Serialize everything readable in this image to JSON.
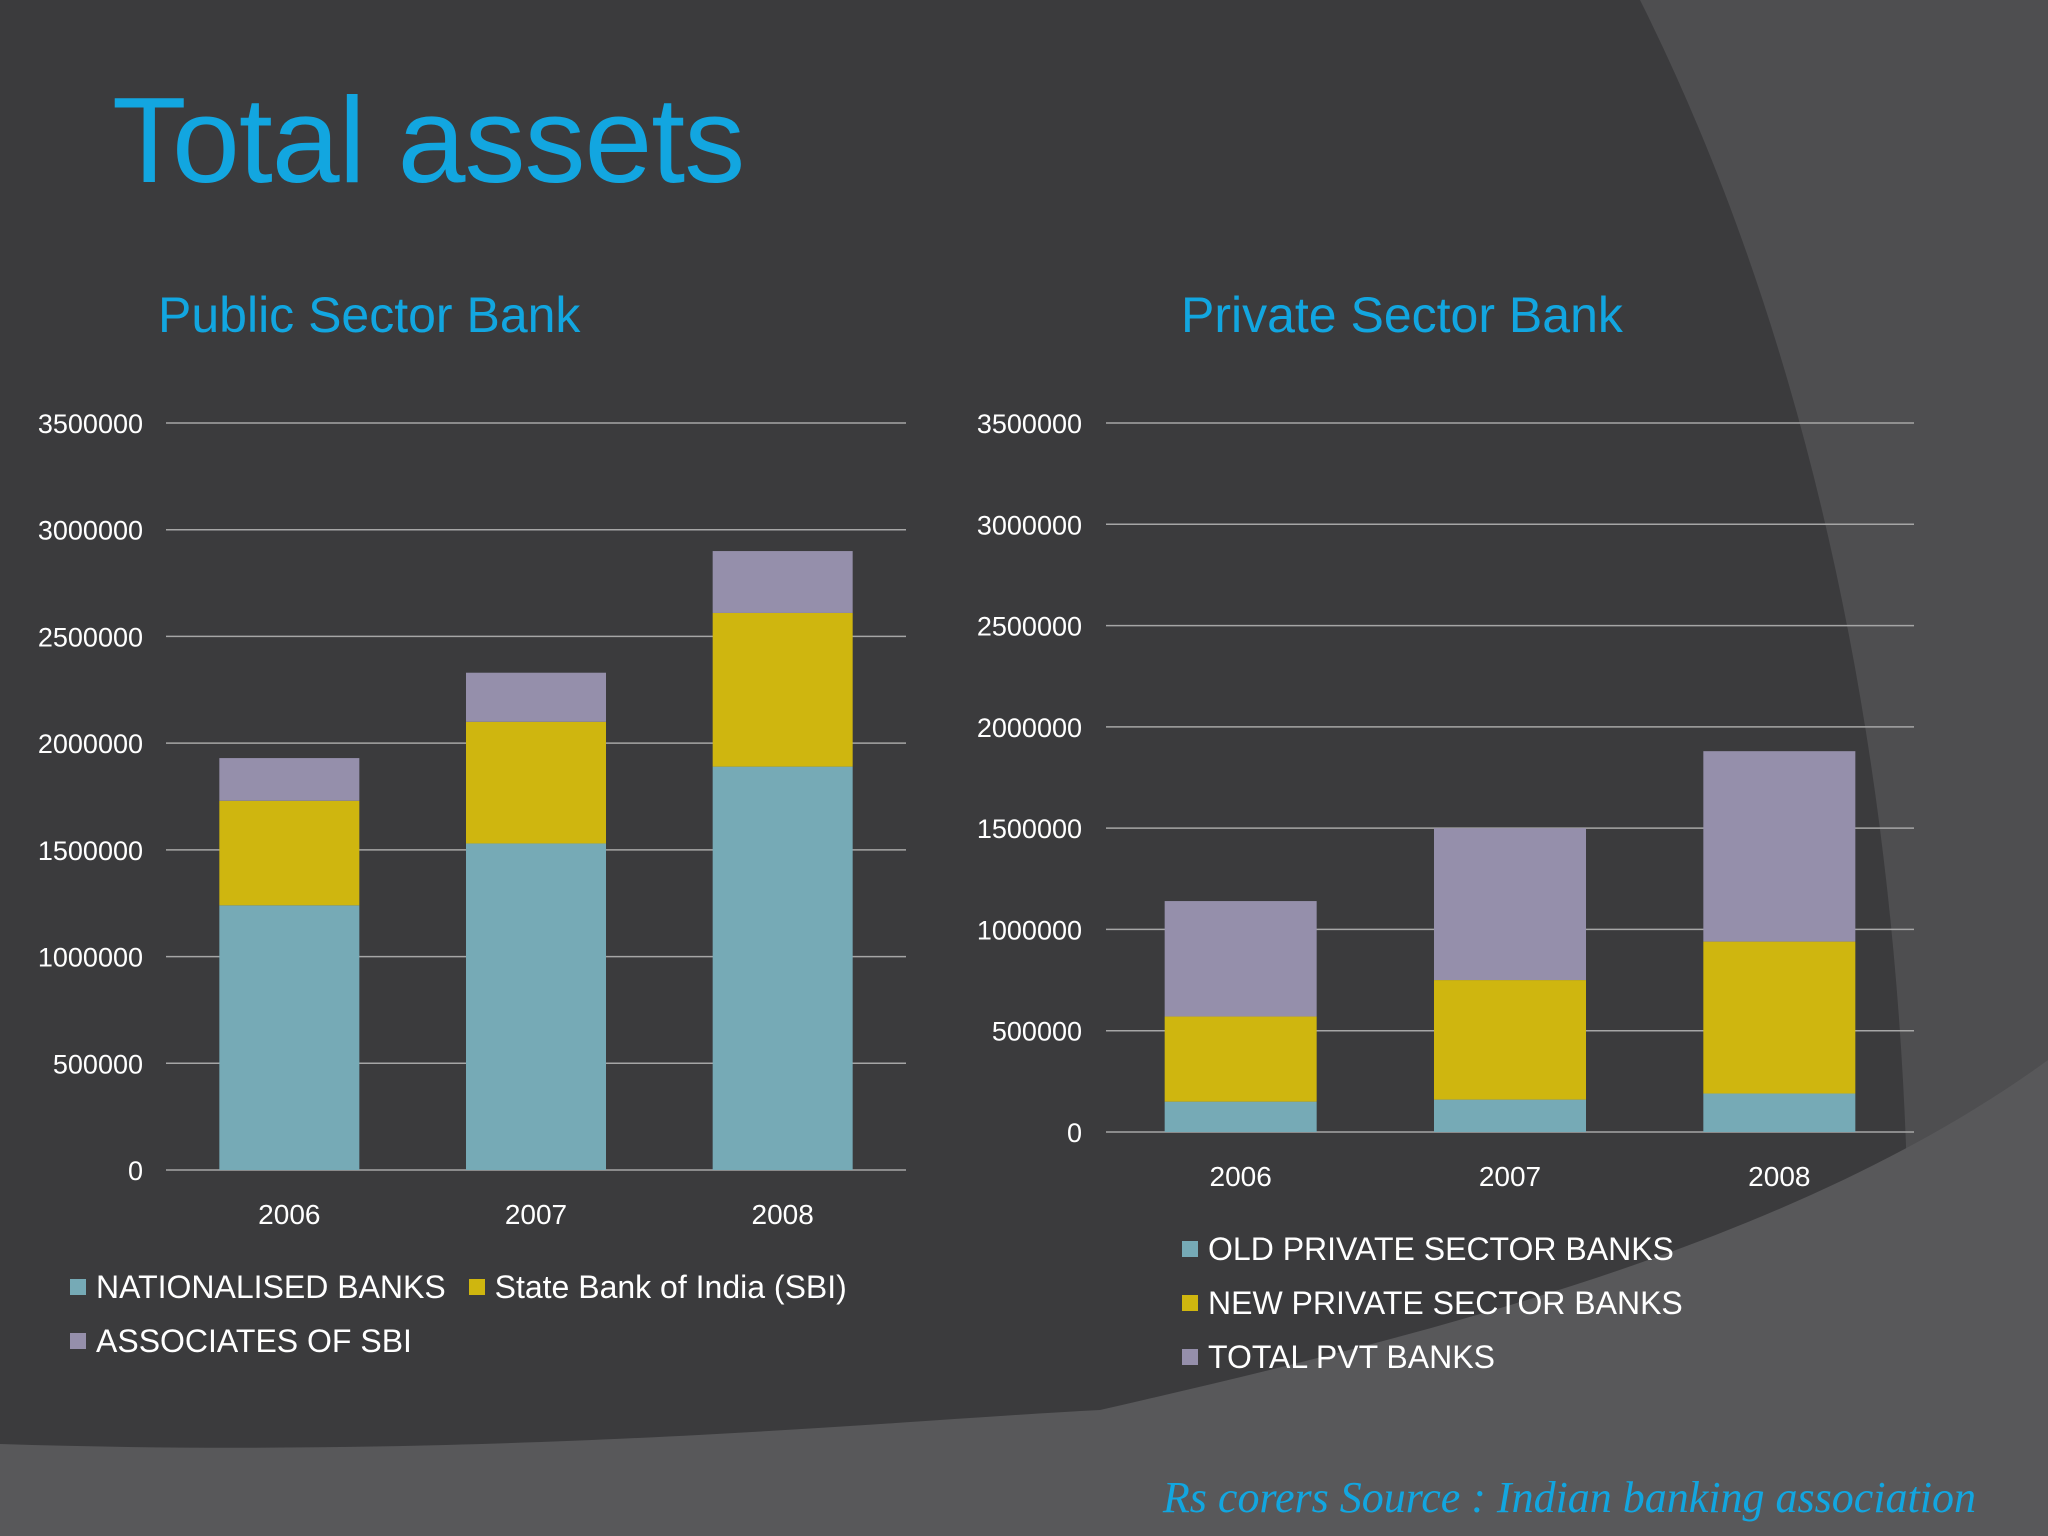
{
  "title": "Total assets",
  "source": "Rs corers Source : Indian banking association",
  "colors": {
    "background": "#3b3b3d",
    "title": "#12a6e0",
    "series_teal": "#76aab6",
    "series_yellow": "#cfb60f",
    "series_purple": "#958fab"
  },
  "chart_data": [
    {
      "type": "bar",
      "stacked": true,
      "title": "Public Sector Bank",
      "categories": [
        "2006",
        "2007",
        "2008"
      ],
      "yticks": [
        "0",
        "500000",
        "1000000",
        "1500000",
        "2000000",
        "2500000",
        "3000000",
        "3500000"
      ],
      "ylim": [
        0,
        3500000
      ],
      "grid": true,
      "legend_position": "bottom",
      "series": [
        {
          "name": "NATIONALISED BANKS",
          "color": "#76aab6",
          "values": [
            1240000,
            1530000,
            1890000
          ]
        },
        {
          "name": "State Bank of India (SBI)",
          "color": "#cfb60f",
          "values": [
            490000,
            570000,
            720000
          ]
        },
        {
          "name": "ASSOCIATES OF SBI",
          "color": "#958fab",
          "values": [
            200000,
            230000,
            290000
          ]
        }
      ]
    },
    {
      "type": "bar",
      "stacked": true,
      "title": "Private Sector Bank",
      "categories": [
        "2006",
        "2007",
        "2008"
      ],
      "yticks": [
        "0",
        "500000",
        "1000000",
        "1500000",
        "2000000",
        "2500000",
        "3000000",
        "3500000"
      ],
      "ylim": [
        0,
        3500000
      ],
      "grid": true,
      "legend_position": "bottom",
      "series": [
        {
          "name": "OLD PRIVATE SECTOR BANKS",
          "color": "#76aab6",
          "values": [
            150000,
            160000,
            190000
          ]
        },
        {
          "name": "NEW PRIVATE SECTOR BANKS",
          "color": "#cfb60f",
          "values": [
            420000,
            590000,
            750000
          ]
        },
        {
          "name": "TOTAL PVT BANKS",
          "color": "#958fab",
          "values": [
            570000,
            750000,
            940000
          ]
        }
      ]
    }
  ]
}
